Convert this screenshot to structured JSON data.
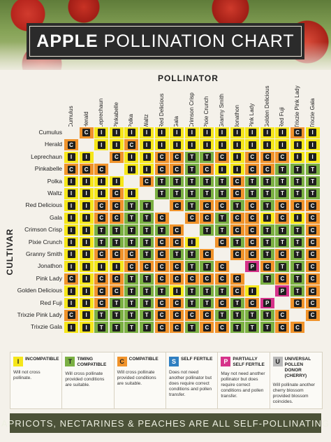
{
  "title": {
    "bold": "APPLE",
    "light": "POLLINATION CHART"
  },
  "axis": {
    "pollinator": "POLLINATOR",
    "cultivar": "CULTIVAR"
  },
  "varieties": [
    "Cumulus",
    "Herald",
    "Leprechaun",
    "Pinkabelle",
    "Polka",
    "Waltz",
    "Red Delicious",
    "Gala",
    "Crimson Crisp",
    "Pixie Crunch",
    "Granny Smith",
    "Jonathon",
    "Pink Lady",
    "Golden Delicious",
    "Red Fuji",
    "Trixzie Pink Lady",
    "Trixzie Gala"
  ],
  "row_labels": [
    "Cumulus",
    "Herald",
    "Leprechaun",
    "Pinkabelle",
    "Polka",
    "Waltz",
    "Red Delicious",
    "Gala",
    "Crimson Crisp",
    "Pixie Crunch",
    "Granny Smith",
    "Jonathon",
    "Pink Lady",
    "Golden Delicious",
    "Red Fuji",
    "Trixzie Pink Lady",
    "Trixzie Gala"
  ],
  "grid": [
    [
      "",
      "C",
      "I",
      "I",
      "I",
      "I",
      "I",
      "I",
      "I",
      "I",
      "I",
      "I",
      "I",
      "I",
      "I",
      "C",
      "I"
    ],
    [
      "C",
      "",
      "I",
      "I",
      "C",
      "I",
      "I",
      "I",
      "I",
      "I",
      "I",
      "I",
      "I",
      "I",
      "I",
      "I",
      "I"
    ],
    [
      "I",
      "I",
      "",
      "C",
      "I",
      "I",
      "C",
      "C",
      "T",
      "T",
      "C",
      "I",
      "C",
      "C",
      "C",
      "I",
      "I"
    ],
    [
      "C",
      "C",
      "C",
      "",
      "I",
      "I",
      "C",
      "C",
      "T",
      "C",
      "I",
      "I",
      "C",
      "C",
      "T",
      "T",
      "T"
    ],
    [
      "I",
      "I",
      "I",
      "I",
      "",
      "C",
      "T",
      "T",
      "T",
      "T",
      "T",
      "C",
      "T",
      "T",
      "T",
      "T",
      "T"
    ],
    [
      "I",
      "I",
      "I",
      "C",
      "I",
      "",
      "T",
      "T",
      "T",
      "T",
      "T",
      "C",
      "T",
      "T",
      "T",
      "T",
      "T"
    ],
    [
      "I",
      "I",
      "C",
      "C",
      "T",
      "T",
      "",
      "C",
      "T",
      "C",
      "C",
      "T",
      "C",
      "T",
      "C",
      "C",
      "C"
    ],
    [
      "I",
      "I",
      "C",
      "C",
      "T",
      "T",
      "C",
      "",
      "C",
      "C",
      "T",
      "C",
      "C",
      "I",
      "C",
      "I",
      "C"
    ],
    [
      "I",
      "I",
      "T",
      "T",
      "T",
      "T",
      "T",
      "C",
      "",
      "T",
      "T",
      "C",
      "C",
      "T",
      "T",
      "T",
      "C"
    ],
    [
      "I",
      "I",
      "T",
      "T",
      "T",
      "T",
      "C",
      "C",
      "I",
      "",
      "C",
      "T",
      "C",
      "T",
      "T",
      "T",
      "C"
    ],
    [
      "I",
      "I",
      "C",
      "C",
      "C",
      "T",
      "C",
      "T",
      "T",
      "C",
      "",
      "C",
      "C",
      "T",
      "C",
      "T",
      "C"
    ],
    [
      "I",
      "I",
      "I",
      "I",
      "C",
      "C",
      "C",
      "C",
      "T",
      "T",
      "C",
      "",
      "P",
      "C",
      "T",
      "T",
      "C"
    ],
    [
      "C",
      "I",
      "C",
      "C",
      "T",
      "T",
      "C",
      "C",
      "C",
      "C",
      "C",
      "C",
      "",
      "T",
      "C",
      "T",
      "C"
    ],
    [
      "I",
      "I",
      "C",
      "C",
      "T",
      "T",
      "T",
      "I",
      "T",
      "T",
      "T",
      "C",
      "I",
      "",
      "P",
      "T",
      "C"
    ],
    [
      "I",
      "I",
      "C",
      "T",
      "T",
      "T",
      "C",
      "C",
      "T",
      "T",
      "C",
      "T",
      "C",
      "P",
      "",
      "C",
      "C"
    ],
    [
      "C",
      "I",
      "T",
      "T",
      "T",
      "T",
      "C",
      "C",
      "C",
      "C",
      "T",
      "T",
      "T",
      "T",
      "C",
      "",
      "C"
    ],
    [
      "I",
      "I",
      "T",
      "T",
      "T",
      "T",
      "C",
      "C",
      "T",
      "C",
      "C",
      "T",
      "T",
      "T",
      "C",
      "C",
      ""
    ]
  ],
  "colors": {
    "I": "#f5e61a",
    "T": "#7bb043",
    "C": "#f0932b",
    "S": "#2f7fc1",
    "P": "#d6338a",
    "U": "#b8b8b8",
    "diag": "#f4f1ea"
  },
  "legend": [
    {
      "letter": "I",
      "title": "INCOMPATIBLE",
      "desc": "Will not cross pollinate."
    },
    {
      "letter": "T",
      "title": "TIMING COMPATIBLE",
      "desc": "Will cross pollinate provided conditions are suitable."
    },
    {
      "letter": "C",
      "title": "COMPATIBLE",
      "desc": "Will cross pollinate provided conditions are suitable."
    },
    {
      "letter": "S",
      "title": "SELF FERTILE",
      "desc": "Does not need another pollinator but does require correct conditions and pollen transfer."
    },
    {
      "letter": "P",
      "title": "PARTIALLY SELF FERTILE",
      "desc": "May not need another pollinator but does require correct conditions and pollen transfer."
    },
    {
      "letter": "U",
      "title": "UNIVERSAL POLLEN DONOR (CHERRY)",
      "desc": "Will pollinate another cherry blossom provided blossom coincides."
    }
  ],
  "banner": "APRICOTS, NECTARINES & PEACHES ARE ALL SELF-POLLINATING"
}
